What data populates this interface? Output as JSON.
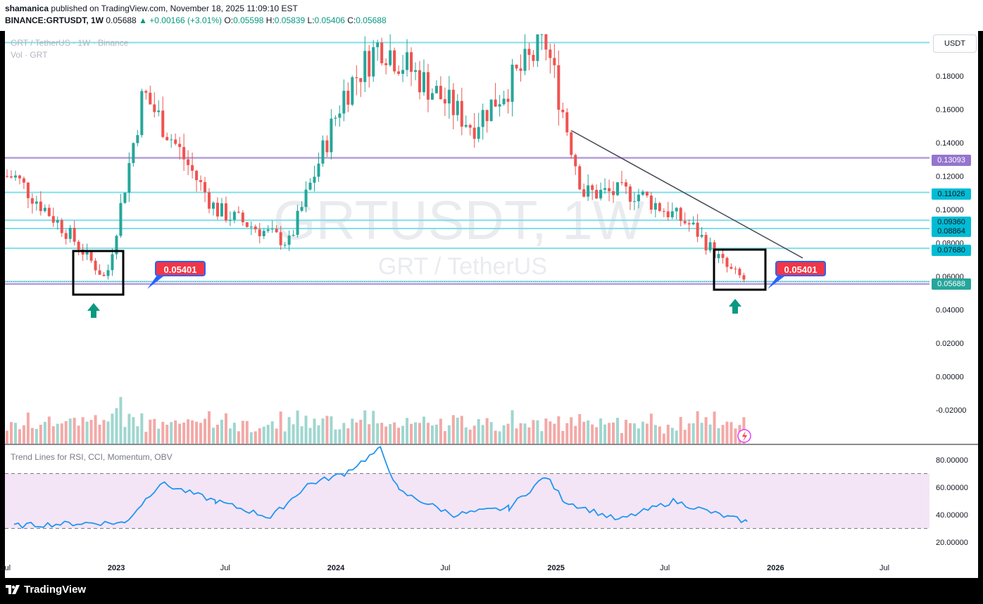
{
  "header": {
    "publisher": "shamanica",
    "published_text": "published on TradingView.com, November 18, 2025 11:09:10 EST",
    "symbol": "BINANCE:GRTUSDT, 1W",
    "last": "0.05688",
    "change": "▲ +0.00166 (+3.01%)",
    "o_label": "O:",
    "o_value": "0.05598",
    "h_label": "H:",
    "h_value": "0.05839",
    "l_label": "L:",
    "l_value": "0.05406",
    "c_label": "C:",
    "c_value": "0.05688"
  },
  "legend": {
    "main": "GRT / TetherUS · 1W · Binance",
    "volume": "Vol · GRT",
    "indicator": "Trend Lines for RSI, CCI, Momentum, OBV"
  },
  "watermark": {
    "symbol": "GRTUSDT, 1W",
    "name": "GRT / TetherUS"
  },
  "currency_button": "USDT",
  "footer": {
    "brand": "TradingView"
  },
  "colors": {
    "up": "#26a69a",
    "down": "#ef5350",
    "cyan_level": "#80deea",
    "purple_level": "#b39ddb",
    "rsi_line": "#2196f3",
    "rsi_band": "#f3e5f5",
    "callout": "#f23645",
    "arrow": "#089981"
  },
  "chart_data": [
    {
      "type": "candlestick",
      "title": "GRT / TetherUS · 1W · Binance",
      "ylim": [
        -0.03,
        0.2
      ],
      "y_ticks": [
        "0.18000",
        "0.16000",
        "0.14000",
        "0.12000",
        "0.10000",
        "0.08000",
        "0.06000",
        "0.04000",
        "0.02000",
        "0.00000",
        "-0.02000"
      ],
      "x_ticks": [
        "Jul",
        "2023",
        "Jul",
        "2024",
        "Jul",
        "2025",
        "Jul",
        "2026",
        "Jul"
      ],
      "horizontal_levels": [
        {
          "price": 0.2,
          "color": "cyan"
        },
        {
          "price": 0.13093,
          "label": "0.13093",
          "color": "purple"
        },
        {
          "price": 0.11026,
          "label": "0.11026",
          "color": "cyan"
        },
        {
          "price": 0.0936,
          "label": "0.09360",
          "color": "cyan"
        },
        {
          "price": 0.08864,
          "label": "0.08864",
          "color": "cyan"
        },
        {
          "price": 0.0768,
          "label": "0.07680",
          "color": "cyan"
        },
        {
          "price": 0.05688,
          "label": "0.05688",
          "color": "cyan"
        },
        {
          "price": 0.0554,
          "color": "purple"
        }
      ],
      "callouts": [
        {
          "label": "0.05401",
          "position": "after 2023 low zone"
        },
        {
          "label": "0.05401",
          "position": "after current low zone"
        }
      ],
      "trendline": {
        "from": [
          "2025-02",
          0.148
        ],
        "to": [
          "2025-12",
          0.074
        ]
      },
      "candles_sampled": [
        {
          "t": "2022-07",
          "o": 0.095,
          "h": 0.13,
          "l": 0.082,
          "c": 0.12
        },
        {
          "t": "2022-10",
          "o": 0.105,
          "h": 0.12,
          "l": 0.08,
          "c": 0.085
        },
        {
          "t": "2022-12",
          "o": 0.075,
          "h": 0.09,
          "l": 0.052,
          "c": 0.058
        },
        {
          "t": "2023-02",
          "o": 0.12,
          "h": 0.2,
          "l": 0.11,
          "c": 0.17
        },
        {
          "t": "2023-06",
          "o": 0.11,
          "h": 0.13,
          "l": 0.09,
          "c": 0.1
        },
        {
          "t": "2023-10",
          "o": 0.085,
          "h": 0.1,
          "l": 0.078,
          "c": 0.08
        },
        {
          "t": "2024-01",
          "o": 0.14,
          "h": 0.2,
          "l": 0.13,
          "c": 0.17
        },
        {
          "t": "2024-03",
          "o": 0.2,
          "h": 0.2,
          "l": 0.16,
          "c": 0.2
        },
        {
          "t": "2024-08",
          "o": 0.18,
          "h": 0.2,
          "l": 0.115,
          "c": 0.15
        },
        {
          "t": "2024-12",
          "o": 0.19,
          "h": 0.2,
          "l": 0.18,
          "c": 0.2
        },
        {
          "t": "2025-02",
          "o": 0.14,
          "h": 0.15,
          "l": 0.1,
          "c": 0.11
        },
        {
          "t": "2025-05",
          "o": 0.095,
          "h": 0.12,
          "l": 0.085,
          "c": 0.11
        },
        {
          "t": "2025-08",
          "o": 0.1,
          "h": 0.12,
          "l": 0.088,
          "c": 0.09
        },
        {
          "t": "2025-10",
          "o": 0.088,
          "h": 0.09,
          "l": 0.03,
          "c": 0.064
        },
        {
          "t": "2025-11",
          "o": 0.05598,
          "h": 0.05839,
          "l": 0.05406,
          "c": 0.05688
        }
      ]
    },
    {
      "type": "line",
      "title": "Trend Lines for RSI, CCI, Momentum, OBV",
      "ylim": [
        15,
        90
      ],
      "y_ticks": [
        "80.00000",
        "60.00000",
        "40.00000",
        "20.00000"
      ],
      "bands": [
        30,
        70
      ],
      "series": [
        {
          "x": [
            "2022-07",
            "2022-11",
            "2023-01",
            "2023-03",
            "2023-06",
            "2023-09",
            "2023-11",
            "2024-01",
            "2024-03",
            "2024-04",
            "2024-07",
            "2024-10",
            "2024-12",
            "2025-01",
            "2025-04",
            "2025-07",
            "2025-10",
            "2025-11"
          ],
          "values": [
            32,
            34,
            34,
            63,
            50,
            38,
            62,
            70,
            88,
            57,
            40,
            45,
            68,
            50,
            36,
            50,
            38,
            35
          ]
        }
      ]
    }
  ]
}
